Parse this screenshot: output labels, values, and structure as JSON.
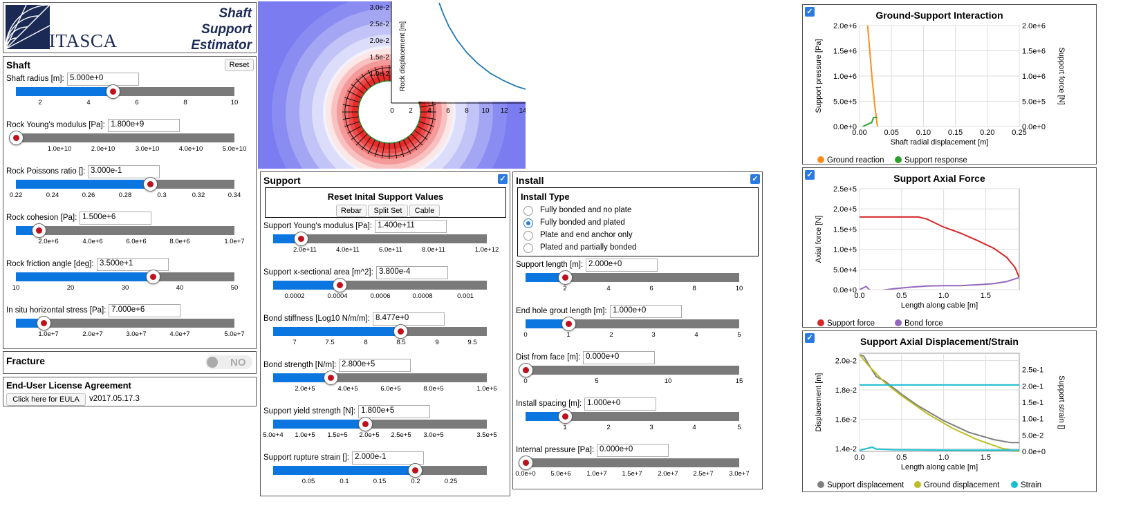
{
  "logo": {
    "brand": "ITASCA",
    "title_line1": "Shaft",
    "title_line2": "Support",
    "title_line3": "Estimator"
  },
  "shaft": {
    "title": "Shaft",
    "reset_label": "Reset",
    "sliders": [
      {
        "label": "Shaft radius [m]:",
        "value": "5.000e+0",
        "fraction": 0.444,
        "ticks": [
          "2",
          "4",
          "6",
          "8",
          "10"
        ]
      },
      {
        "label": "Rock Young's modulus [Pa]:",
        "value": "1.800e+9",
        "fraction": 0.0,
        "ticks": [
          "1.0e+10",
          "2.0e+10",
          "3.0e+10",
          "4.0e+10",
          "5.0e+10"
        ]
      },
      {
        "label": "Rock Poissons ratio []:",
        "value": "3.000e-1",
        "fraction": 0.615,
        "ticks": [
          "0.22",
          "0.24",
          "0.26",
          "0.28",
          "0.3",
          "0.32",
          "0.34"
        ]
      },
      {
        "label": "Rock cohesion [Pa]:",
        "value": "1.500e+6",
        "fraction": 0.105,
        "ticks": [
          "2.0e+6",
          "4.0e+6",
          "6.0e+6",
          "8.0e+6",
          "1.0e+7"
        ]
      },
      {
        "label": "Rock friction angle [deg]:",
        "value": "3.500e+1",
        "fraction": 0.625,
        "ticks": [
          "10",
          "20",
          "30",
          "40",
          "50"
        ]
      },
      {
        "label": "In situ horizontal stress [Pa]:",
        "value": "7.000e+6",
        "fraction": 0.125,
        "ticks": [
          "1.0e+7",
          "2.0e+7",
          "3.0e+7",
          "4.0e+7",
          "5.0e+7"
        ]
      }
    ]
  },
  "fracture": {
    "title": "Fracture",
    "toggle": "NO"
  },
  "eula": {
    "title": "End-User License Agreement",
    "button": "Click here for EULA",
    "version": "v2017.05.17.3"
  },
  "support": {
    "title": "Support",
    "reset_title": "Reset Inital Support Values",
    "presets": [
      "Rebar",
      "Split Set",
      "Cable"
    ],
    "sliders": [
      {
        "label": "Support Young's modulus [Pa]:",
        "value": "1.400e+11",
        "fraction": 0.13,
        "ticks": [
          "2.0e+11",
          "4.0e+11",
          "6.0e+11",
          "8.0e+11",
          "1.0e+12"
        ]
      },
      {
        "label": "Support x-sectional area [m^2]:",
        "value": "3.800e-4",
        "fraction": 0.31,
        "ticks": [
          "0.0002",
          "0.0004",
          "0.0006",
          "0.0008",
          "0.001"
        ]
      },
      {
        "label": "Bond stiffness [Log10 N/m/m]:",
        "value": "8.477e+0",
        "fraction": 0.595,
        "ticks": [
          "7",
          "7.5",
          "8",
          "8.5",
          "9",
          "9.5"
        ]
      },
      {
        "label": "Bond strength [N/m]:",
        "value": "2.800e+5",
        "fraction": 0.27,
        "ticks": [
          "2.0e+5",
          "4.0e+5",
          "6.0e+5",
          "8.0e+5",
          "1.0e+6"
        ]
      },
      {
        "label": "Support yield strength [N]:",
        "value": "1.800e+5",
        "fraction": 0.43,
        "ticks": [
          "5.0e+4",
          "1.0e+5",
          "1.5e+5",
          "2.0e+5",
          "2.5e+5",
          "3.0e+5",
          "3.5e+5"
        ]
      },
      {
        "label": "Support rupture strain []:",
        "value": "2.000e-1",
        "fraction": 0.665,
        "ticks": [
          "0.05",
          "0.1",
          "0.15",
          "0.2",
          "0.25"
        ]
      }
    ]
  },
  "install": {
    "title": "Install",
    "type_title": "Install Type",
    "options": [
      {
        "label": "Fully bonded and no plate",
        "selected": false
      },
      {
        "label": "Fully bonded and plated",
        "selected": true
      },
      {
        "label": "Plate and end anchor only",
        "selected": false
      },
      {
        "label": "Plated and partially bonded",
        "selected": false
      }
    ],
    "sliders": [
      {
        "label": "Support length [m]:",
        "value": "2.000e+0",
        "fraction": 0.185,
        "ticks": [
          "2",
          "4",
          "6",
          "8",
          "10"
        ]
      },
      {
        "label": "End hole grout length [m]:",
        "value": "1.000e+0",
        "fraction": 0.2,
        "ticks": [
          "0",
          "1",
          "2",
          "3",
          "4",
          "5"
        ]
      },
      {
        "label": "Dist from face [m]:",
        "value": "0.000e+0",
        "fraction": 0.0,
        "ticks": [
          "0",
          "5",
          "10",
          "15"
        ]
      },
      {
        "label": "Install spacing [m]:",
        "value": "1.000e+0",
        "fraction": 0.185,
        "ticks": [
          "1",
          "2",
          "3",
          "4",
          "5"
        ]
      },
      {
        "label": "Internal pressure [Pa]:",
        "value": "0.000e+0",
        "fraction": 0.0,
        "ticks": [
          "0.0e+0",
          "5.0e+6",
          "1.0e+7",
          "1.5e+7",
          "2.0e+7",
          "2.5e+7",
          "3.0e+7"
        ]
      }
    ]
  },
  "shaft_plot": {
    "ylabel": "Rock displacement [m]",
    "yticks": [
      "3.0e-2",
      "2.5e-2",
      "2.0e-2",
      "1.5e-2",
      "1.0e-2"
    ],
    "xticks": [
      "0",
      "2",
      "4",
      "6",
      "8",
      "10",
      "12",
      "14"
    ]
  },
  "chart_data": [
    {
      "type": "line",
      "title": "Ground-Support Interaction",
      "xlabel": "Shaft radial displacement [m]",
      "ylabel": "Support pressure [Pa]",
      "y2label": "Support force [N]",
      "xlim": [
        0,
        0.25
      ],
      "ylim": [
        0,
        2000000
      ],
      "y2lim": [
        0,
        2000000
      ],
      "xticks": [
        "0.00",
        "0.05",
        "0.10",
        "0.15",
        "0.20",
        "0.25"
      ],
      "yticks": [
        "0.0e+0",
        "5.0e+5",
        "1.0e+6",
        "1.5e+6",
        "2.0e+6"
      ],
      "y2ticks": [
        "0.0e+0",
        "5.0e+5",
        "1.0e+6",
        "1.5e+6",
        "2.0e+6"
      ],
      "legend_position": "bottom",
      "series": [
        {
          "name": "Ground reaction",
          "color": "#ff8c1a",
          "x": [
            0.012,
            0.016,
            0.02,
            0.024,
            0.028
          ],
          "y": [
            2100000,
            1500000,
            900000,
            400000,
            0
          ]
        },
        {
          "name": "Support response",
          "color": "#2ca02c",
          "x": [
            0.005,
            0.012,
            0.019,
            0.022,
            0.026,
            0.028
          ],
          "y": [
            0,
            40000,
            80000,
            180000,
            180000,
            180000
          ]
        }
      ]
    },
    {
      "type": "line",
      "title": "Support Axial Force",
      "xlabel": "Length along cable [m]",
      "ylabel": "Axial force [N]",
      "xlim": [
        0,
        1.9
      ],
      "ylim": [
        0,
        250000
      ],
      "xticks": [
        "0.0",
        "0.5",
        "1.0",
        "1.5"
      ],
      "yticks": [
        "0.0e+0",
        "5.0e+4",
        "1.0e+5",
        "1.5e+5",
        "2.0e+5",
        "2.5e+5"
      ],
      "legend_position": "bottom",
      "series": [
        {
          "name": "Support force",
          "color": "#d62728",
          "x": [
            0,
            0.3,
            0.7,
            0.8,
            1.0,
            1.2,
            1.4,
            1.6,
            1.75,
            1.85,
            1.9
          ],
          "y": [
            180000,
            180000,
            180000,
            175000,
            155000,
            140000,
            122000,
            102000,
            80000,
            55000,
            30000
          ]
        },
        {
          "name": "Bond force",
          "color": "#9467bd",
          "x": [
            0,
            0.08,
            0.15,
            0.25,
            0.4,
            0.6,
            0.8,
            1.0,
            1.2,
            1.4,
            1.6,
            1.75,
            1.9
          ],
          "y": [
            0,
            8000,
            -8000,
            -2000,
            2000,
            6000,
            9000,
            10000,
            10000,
            12000,
            15000,
            20000,
            30000
          ]
        }
      ]
    },
    {
      "type": "line",
      "title": "Support Axial Displacement/Strain",
      "xlabel": "Length along cable [m]",
      "ylabel": "Displacement [m]",
      "y2label": "Support strain []",
      "xlim": [
        0,
        1.9
      ],
      "ylim": [
        0.0138,
        0.0205
      ],
      "y2lim": [
        0,
        0.3
      ],
      "xticks": [
        "0.0",
        "0.5",
        "1.0",
        "1.5"
      ],
      "yticks": [
        "1.4e-2",
        "1.6e-2",
        "1.8e-2",
        "2.0e-2"
      ],
      "y2ticks": [
        "0.0e+0",
        "5.0e-2",
        "1.0e-1",
        "1.5e-1",
        "2.0e-1",
        "2.5e-1"
      ],
      "legend_position": "bottom",
      "series": [
        {
          "name": "Support displacement",
          "color": "#7f7f7f",
          "axis": "left",
          "x": [
            0,
            0.05,
            0.1,
            0.2,
            0.3,
            0.5,
            0.7,
            1.0,
            1.3,
            1.6,
            1.8,
            1.9
          ],
          "y": [
            0.0204,
            0.0203,
            0.0198,
            0.0189,
            0.0186,
            0.0177,
            0.0169,
            0.0159,
            0.0151,
            0.0146,
            0.0144,
            0.0144
          ]
        },
        {
          "name": "Ground displacement",
          "color": "#bcbd22",
          "axis": "left",
          "x": [
            0,
            0.1,
            0.3,
            0.5,
            0.8,
            1.1,
            1.4,
            1.7,
            1.9
          ],
          "y": [
            0.0204,
            0.0197,
            0.0185,
            0.0176,
            0.0164,
            0.0154,
            0.0146,
            0.014,
            0.0138
          ]
        },
        {
          "name": "Strain",
          "color": "#17becf",
          "axis": "right",
          "x": [
            0,
            0.15,
            0.2,
            0.4,
            1.0,
            1.9
          ],
          "y": [
            0.003,
            0.013,
            0.007,
            0.005,
            0.004,
            0.004
          ]
        },
        {
          "name": "Strain",
          "color": "#17becf",
          "axis": "right",
          "x": [
            0,
            1.9
          ],
          "y": [
            0.203,
            0.203
          ]
        }
      ]
    }
  ]
}
